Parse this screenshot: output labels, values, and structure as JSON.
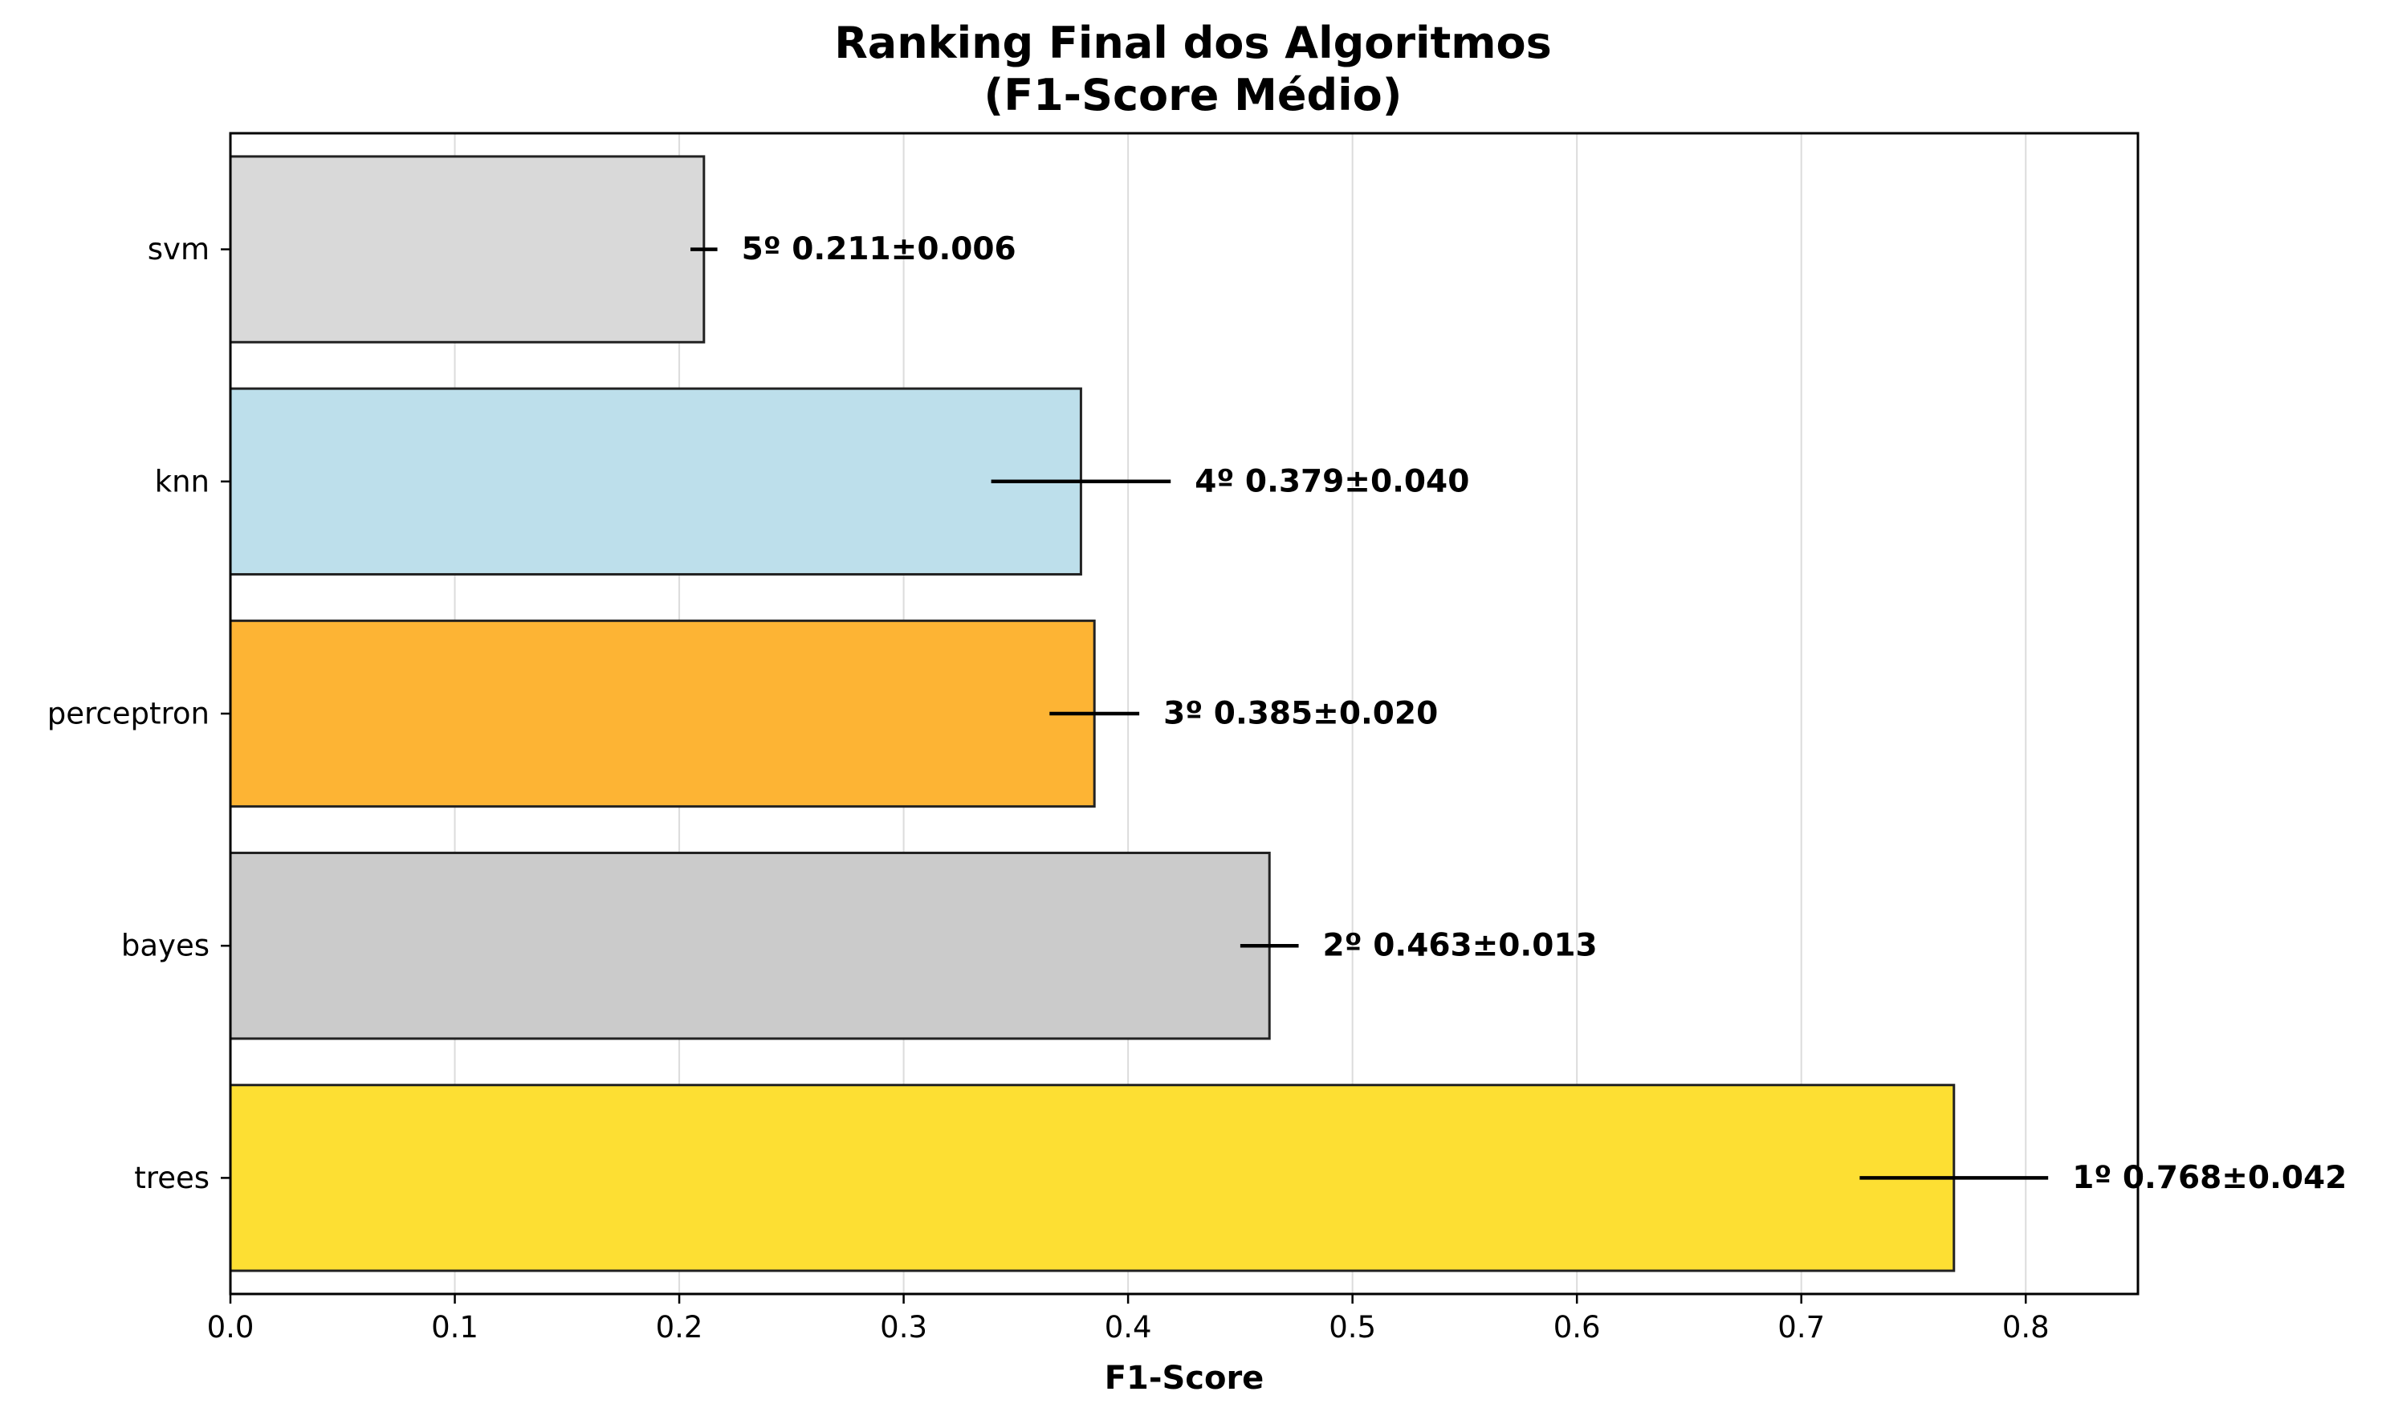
{
  "chart_data": {
    "type": "bar",
    "orientation": "horizontal",
    "title_lines": [
      "Ranking Final dos Algoritmos",
      "(F1-Score Médio)"
    ],
    "xlabel": "F1-Score",
    "ylabel": "",
    "xlim": [
      0,
      0.85
    ],
    "xticks": [
      0.0,
      0.1,
      0.2,
      0.3,
      0.4,
      0.5,
      0.6,
      0.7,
      0.8
    ],
    "xtick_labels": [
      "0.0",
      "0.1",
      "0.2",
      "0.3",
      "0.4",
      "0.5",
      "0.6",
      "0.7",
      "0.8"
    ],
    "grid": "x",
    "categories": [
      "svm",
      "knn",
      "perceptron",
      "bayes",
      "trees"
    ],
    "values": [
      0.211,
      0.379,
      0.385,
      0.463,
      0.768
    ],
    "errors": [
      0.006,
      0.04,
      0.02,
      0.013,
      0.042
    ],
    "labels": [
      "5º 0.211±0.006",
      "4º 0.379±0.040",
      "3º 0.385±0.020",
      "2º 0.463±0.013",
      "1º 0.768±0.042"
    ],
    "colors": [
      "#d9d9d9",
      "#bddfeb",
      "#fdb434",
      "#cbcbcb",
      "#fddf33"
    ]
  }
}
